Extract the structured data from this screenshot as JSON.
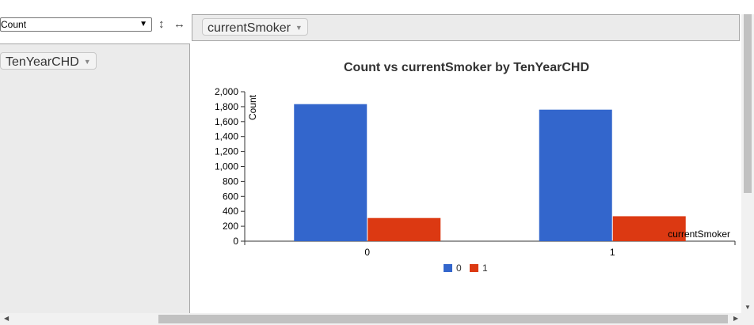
{
  "controls": {
    "aggregator": "Count",
    "sort_icon": "vertical-arrows-icon",
    "swap_icon": "horizontal-arrows-icon",
    "column_field": "currentSmoker",
    "row_field": "TenYearCHD"
  },
  "chart_data": {
    "type": "bar",
    "title": "Count vs currentSmoker by TenYearCHD",
    "xlabel": "currentSmoker",
    "ylabel": "Count",
    "categories": [
      "0",
      "1"
    ],
    "series": [
      {
        "name": "0",
        "color": "#3366cc",
        "values": [
          1834,
          1760
        ]
      },
      {
        "name": "1",
        "color": "#dc3912",
        "values": [
          310,
          334
        ]
      }
    ],
    "ylim": [
      0,
      2000
    ],
    "yticks": [
      "0",
      "200",
      "400",
      "600",
      "800",
      "1,000",
      "1,200",
      "1,400",
      "1,600",
      "1,800",
      "2,000"
    ],
    "legend_position": "bottom"
  }
}
